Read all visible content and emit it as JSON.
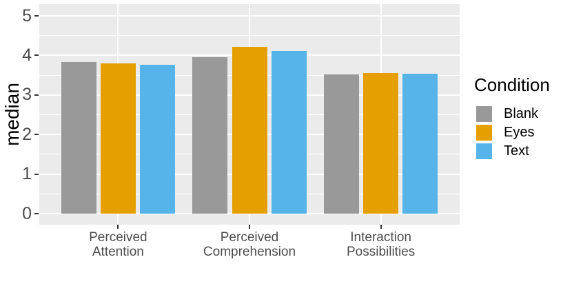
{
  "chart_data": {
    "type": "bar",
    "title": "",
    "ylabel": "median",
    "xlabel": "",
    "legend_title": "Condition",
    "legend_position": "right",
    "grid": true,
    "categories": [
      "Perceived\nAttention",
      "Perceived\nComprehension",
      "Interaction\nPossibilities"
    ],
    "series": [
      {
        "name": "Blank",
        "color": "#999999",
        "values": [
          3.83,
          3.96,
          3.52
        ]
      },
      {
        "name": "Eyes",
        "color": "#E69F00",
        "values": [
          3.8,
          4.22,
          3.56
        ]
      },
      {
        "name": "Text",
        "color": "#56B4E9",
        "values": [
          3.76,
          4.11,
          3.53
        ]
      }
    ],
    "y_axis": {
      "min": 0,
      "max": 5,
      "ticks": [
        0,
        1,
        2,
        3,
        4,
        5
      ],
      "minor_ticks": [
        0.5,
        1.5,
        2.5,
        3.5,
        4.5
      ]
    },
    "ylim": [
      0,
      5
    ],
    "colors": {
      "panel_background": "#EBEBEB",
      "grid_major": "#FFFFFF",
      "grid_minor": "#FFFFFF",
      "tick_text": "#4D4D4D",
      "tick_mark": "#333333",
      "axis_title": "#000000"
    }
  }
}
